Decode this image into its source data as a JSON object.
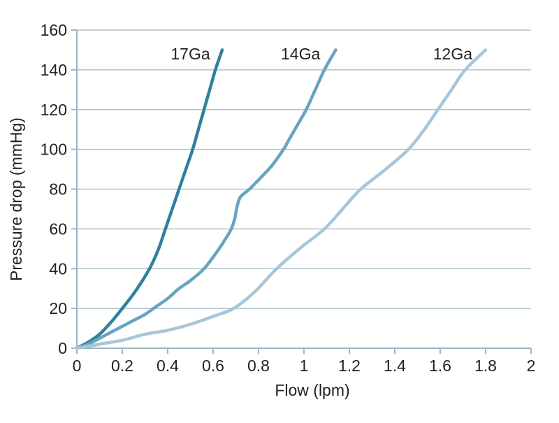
{
  "chart_data": {
    "type": "line",
    "title": "",
    "xlabel": "Flow (lpm)",
    "ylabel": "Pressure drop (mmHg)",
    "xlim": [
      0,
      2
    ],
    "ylim": [
      0,
      160
    ],
    "grid": "horizontal",
    "legend_position": "inline-labels-above-curves",
    "x_ticks": {
      "values": [
        0,
        0.2,
        0.4,
        0.6,
        0.8,
        1,
        1.2,
        1.4,
        1.6,
        1.8,
        2
      ],
      "labels": [
        "0",
        "0.2",
        "0.4",
        "0.6",
        "0.8",
        "1",
        "1.2",
        "1.4",
        "1.6",
        "1.8",
        "2"
      ]
    },
    "y_ticks": {
      "values": [
        0,
        20,
        40,
        60,
        80,
        100,
        120,
        140,
        160
      ],
      "labels": [
        "0",
        "20",
        "40",
        "60",
        "80",
        "100",
        "120",
        "140",
        "160"
      ]
    },
    "series": [
      {
        "name": "17Ga",
        "color": "#30809e",
        "label": {
          "text": "17Ga",
          "x": 0.5,
          "y": 148
        },
        "points": [
          [
            0,
            0
          ],
          [
            0.05,
            3
          ],
          [
            0.1,
            7
          ],
          [
            0.15,
            13
          ],
          [
            0.2,
            20
          ],
          [
            0.26,
            29
          ],
          [
            0.32,
            40
          ],
          [
            0.36,
            50
          ],
          [
            0.39,
            60
          ],
          [
            0.42,
            70
          ],
          [
            0.45,
            80
          ],
          [
            0.48,
            90
          ],
          [
            0.51,
            100
          ],
          [
            0.535,
            110
          ],
          [
            0.56,
            120
          ],
          [
            0.585,
            130
          ],
          [
            0.61,
            140
          ],
          [
            0.64,
            150
          ]
        ]
      },
      {
        "name": "14Ga",
        "color": "#68a4c0",
        "label": {
          "text": "14Ga",
          "x": 0.985,
          "y": 148
        },
        "points": [
          [
            0,
            0
          ],
          [
            0.05,
            2
          ],
          [
            0.1,
            5
          ],
          [
            0.15,
            8
          ],
          [
            0.2,
            11
          ],
          [
            0.25,
            14
          ],
          [
            0.3,
            17
          ],
          [
            0.35,
            21
          ],
          [
            0.4,
            25
          ],
          [
            0.45,
            30
          ],
          [
            0.5,
            34
          ],
          [
            0.56,
            40
          ],
          [
            0.62,
            49
          ],
          [
            0.66,
            56
          ],
          [
            0.68,
            60
          ],
          [
            0.695,
            65
          ],
          [
            0.705,
            71
          ],
          [
            0.72,
            76
          ],
          [
            0.76,
            80
          ],
          [
            0.82,
            87
          ],
          [
            0.86,
            92
          ],
          [
            0.91,
            100
          ],
          [
            0.93,
            104
          ],
          [
            0.97,
            112
          ],
          [
            1.01,
            120
          ],
          [
            1.05,
            130
          ],
          [
            1.09,
            140
          ],
          [
            1.14,
            150
          ]
        ]
      },
      {
        "name": "12Ga",
        "color": "#a8c6d8",
        "label": {
          "text": "12Ga",
          "x": 1.655,
          "y": 148
        },
        "points": [
          [
            0,
            0
          ],
          [
            0.1,
            2
          ],
          [
            0.2,
            4
          ],
          [
            0.3,
            7
          ],
          [
            0.4,
            9
          ],
          [
            0.5,
            12
          ],
          [
            0.6,
            16
          ],
          [
            0.69,
            20
          ],
          [
            0.78,
            28
          ],
          [
            0.88,
            40
          ],
          [
            0.98,
            50
          ],
          [
            1.09,
            60
          ],
          [
            1.17,
            70
          ],
          [
            1.25,
            80
          ],
          [
            1.36,
            90
          ],
          [
            1.46,
            100
          ],
          [
            1.53,
            110
          ],
          [
            1.59,
            120
          ],
          [
            1.65,
            130
          ],
          [
            1.71,
            140
          ],
          [
            1.8,
            150
          ]
        ]
      }
    ]
  },
  "styles": {
    "background": "#ffffff",
    "text_color": "#231f20",
    "grid_color": "#b1c4ce",
    "axis_color": "#9fb6c1"
  }
}
